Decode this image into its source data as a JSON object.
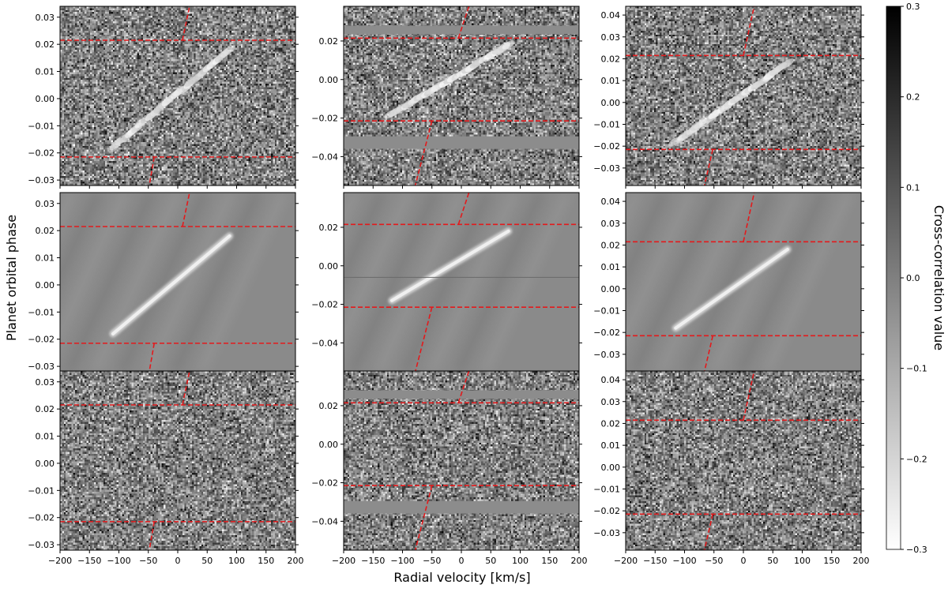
{
  "chart_data": {
    "type": "heatmap",
    "title": "",
    "xlabel": "Radial velocity [km/s]",
    "ylabel": "Planet orbital phase",
    "colorbar": {
      "label": "Cross-correlation value",
      "range": [
        -0.3,
        0.3
      ],
      "ticks": [
        0.3,
        0.2,
        0.1,
        0.0,
        -0.1,
        -0.2,
        -0.3
      ],
      "tick_labels": [
        "0.3",
        "0.2",
        "0.1",
        "0.0",
        "−0.1",
        "−0.2",
        "−0.3"
      ],
      "colormap": "gray_r"
    },
    "grid": false,
    "x_range": [
      -200,
      200
    ],
    "x_ticks": [
      -200,
      -150,
      -100,
      -50,
      0,
      50,
      100,
      150,
      200
    ],
    "x_tick_labels": [
      "−200",
      "−150",
      "−100",
      "−50",
      "0",
      "50",
      "100",
      "150",
      "200"
    ],
    "x_ticks_labeled_on_bottom_row_only": true,
    "y_tick_labels_on_left_column_only_per_column": true,
    "marker_color": "#e31a1c",
    "columns": [
      {
        "y_range": [
          -0.032,
          0.034
        ],
        "y_ticks": [
          0.03,
          0.02,
          0.01,
          0.0,
          -0.01,
          -0.02,
          -0.03
        ],
        "y_tick_labels": [
          "0.03",
          "0.02",
          "0.01",
          "0.00",
          "−0.01",
          "−0.02",
          "−0.03"
        ],
        "transit_phase": [
          -0.0215,
          0.0215
        ],
        "trail_start": {
          "rv": -110,
          "phase": -0.018
        },
        "trail_end": {
          "rv": 88,
          "phase": 0.018
        },
        "stellar_track_top": [
          {
            "rv": 8,
            "phase": 0.0215
          },
          {
            "rv": 22,
            "phase": 0.036
          }
        ],
        "stellar_track_bottom": [
          {
            "rv": -40,
            "phase": -0.0215
          },
          {
            "rv": -50,
            "phase": -0.034
          }
        ],
        "masked_bands": []
      },
      {
        "y_range": [
          -0.055,
          0.038
        ],
        "y_ticks": [
          0.02,
          0.0,
          -0.02,
          -0.04
        ],
        "y_tick_labels": [
          "0.02",
          "0.00",
          "−0.02",
          "−0.04"
        ],
        "transit_phase": [
          -0.0215,
          0.0215
        ],
        "trail_start": {
          "rv": -118,
          "phase": -0.018
        },
        "trail_end": {
          "rv": 80,
          "phase": 0.018
        },
        "stellar_track_top": [
          {
            "rv": -5,
            "phase": 0.0215
          },
          {
            "rv": 15,
            "phase": 0.04
          }
        ],
        "stellar_track_bottom": [
          {
            "rv": -50,
            "phase": -0.0215
          },
          {
            "rv": -80,
            "phase": -0.057
          }
        ],
        "masked_bands": [
          [
            0.0235,
            0.028
          ],
          [
            -0.036,
            -0.0295
          ]
        ]
      },
      {
        "y_range": [
          -0.038,
          0.044
        ],
        "y_ticks": [
          0.04,
          0.03,
          0.02,
          0.01,
          0.0,
          -0.01,
          -0.02,
          -0.03
        ],
        "y_tick_labels": [
          "0.04",
          "0.03",
          "0.02",
          "0.01",
          "0.00",
          "−0.01",
          "−0.02",
          "−0.03"
        ],
        "transit_phase": [
          -0.0215,
          0.0215
        ],
        "trail_start": {
          "rv": -115,
          "phase": -0.018
        },
        "trail_end": {
          "rv": 75,
          "phase": 0.018
        },
        "stellar_track_top": [
          {
            "rv": 0,
            "phase": 0.0215
          },
          {
            "rv": 20,
            "phase": 0.046
          }
        ],
        "stellar_track_bottom": [
          {
            "rv": -52,
            "phase": -0.0215
          },
          {
            "rv": -68,
            "phase": -0.04
          }
        ],
        "masked_bands": []
      }
    ],
    "rows": [
      {
        "kind": "data",
        "trail_strength": 0.75
      },
      {
        "kind": "model",
        "trail_strength": 0.9
      },
      {
        "kind": "residual",
        "trail_strength": 0.0
      }
    ]
  }
}
